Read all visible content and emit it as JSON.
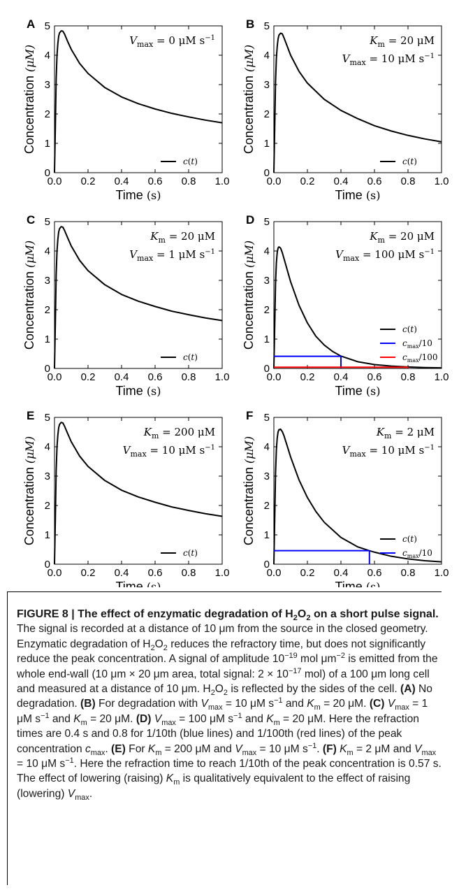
{
  "figure": {
    "caption": {
      "title_parts": [
        "FIGURE 8 | The effect of enzymatic degradation of H",
        "2",
        "O",
        "2",
        " on a short pulse signal."
      ],
      "body": [
        {
          "t": " The signal is recorded at a distance of 10 μm from the source in the closed geometry. Enzymatic degradation of H"
        },
        {
          "sub": "2"
        },
        {
          "t": "O"
        },
        {
          "sub": "2"
        },
        {
          "t": " reduces the refractory time, but does not significantly reduce the peak concentration. A signal of amplitude 10"
        },
        {
          "sup": "−19"
        },
        {
          "t": " mol μm"
        },
        {
          "sup": "−2"
        },
        {
          "t": " is emitted from the whole end-wall (10 μm × 20 μm area, total signal: 2 × 10"
        },
        {
          "sup": "−17"
        },
        {
          "t": " mol) of a 100 μm long cell and measured at a distance of 10 μm. H"
        },
        {
          "sub": "2"
        },
        {
          "t": "O"
        },
        {
          "sub": "2"
        },
        {
          "t": " is reflected by the sides of the cell. "
        },
        {
          "b": "(A)"
        },
        {
          "t": " No degradation. "
        },
        {
          "b": "(B)"
        },
        {
          "t": " For degradation with "
        },
        {
          "i": "V"
        },
        {
          "sub": "max"
        },
        {
          "t": " = 10 μM s"
        },
        {
          "sup": "−1"
        },
        {
          "t": " and "
        },
        {
          "i": "K"
        },
        {
          "sub": "m"
        },
        {
          "t": " = 20 μM. "
        },
        {
          "b": "(C)"
        },
        {
          "t": " "
        },
        {
          "i": "V"
        },
        {
          "sub": "max"
        },
        {
          "t": " = 1 μM s"
        },
        {
          "sup": "−1"
        },
        {
          "t": " and "
        },
        {
          "i": "K"
        },
        {
          "sub": "m"
        },
        {
          "t": " = 20 μM. "
        },
        {
          "b": "(D)"
        },
        {
          "t": " "
        },
        {
          "i": "V"
        },
        {
          "sub": "max"
        },
        {
          "t": " = 100 μM s"
        },
        {
          "sup": "−1"
        },
        {
          "t": " and "
        },
        {
          "i": "K"
        },
        {
          "sub": "m"
        },
        {
          "t": " = 20 μM. Here the refraction times are 0.4 s and 0.8 for 1/10th (blue lines) and 1/100th (red lines) of the peak concentration "
        },
        {
          "i": "c"
        },
        {
          "sub": "max"
        },
        {
          "t": ". "
        },
        {
          "b": "(E)"
        },
        {
          "t": " For "
        },
        {
          "i": "K"
        },
        {
          "sub": "m"
        },
        {
          "t": " = 200 μM and "
        },
        {
          "i": "V"
        },
        {
          "sub": "max"
        },
        {
          "t": " = 10 μM s"
        },
        {
          "sup": "−1"
        },
        {
          "t": ". "
        },
        {
          "b": "(F)"
        },
        {
          "t": " "
        },
        {
          "i": "K"
        },
        {
          "sub": "m"
        },
        {
          "t": " = 2 μM and "
        },
        {
          "i": "V"
        },
        {
          "sub": "max"
        },
        {
          "t": " = 10 μM s"
        },
        {
          "sup": "−1"
        },
        {
          "t": ". Here the refraction time to reach 1/10th of the peak concentration is 0.57 s. The effect of lowering (raising) "
        },
        {
          "i": "K"
        },
        {
          "sub": "m"
        },
        {
          "t": " is qualitatively equivalent to the effect of raising (lowering) "
        },
        {
          "i": "V"
        },
        {
          "sub": "max"
        },
        {
          "t": "."
        }
      ]
    }
  },
  "chart_data": [
    {
      "type": "line",
      "panel": "A",
      "xlabel": "Time",
      "xlabel_unit": "(s)",
      "ylabel": "Concentration",
      "ylabel_unit": "(μM)",
      "xlim": [
        0,
        1
      ],
      "ylim": [
        0,
        5
      ],
      "xticks": [
        "0.0",
        "0.2",
        "0.4",
        "0.6",
        "0.8",
        "1.0"
      ],
      "yticks": [
        "0",
        "1",
        "2",
        "3",
        "4",
        "5"
      ],
      "params": [
        {
          "sym": "V",
          "sub": "max",
          "val": "0 μM s",
          "sup": "−1"
        }
      ],
      "legend": {
        "placement": "lower-right",
        "entries": [
          {
            "label": "c(t)",
            "color": "#000000"
          }
        ]
      },
      "series": [
        {
          "name": "c(t)",
          "color": "#000000",
          "x": [
            0,
            0.005,
            0.01,
            0.015,
            0.02,
            0.025,
            0.03,
            0.04,
            0.05,
            0.06,
            0.08,
            0.1,
            0.15,
            0.2,
            0.3,
            0.4,
            0.5,
            0.6,
            0.7,
            0.8,
            0.9,
            1.0
          ],
          "y": [
            0,
            1.5,
            3.2,
            4.0,
            4.4,
            4.65,
            4.76,
            4.83,
            4.82,
            4.72,
            4.45,
            4.2,
            3.72,
            3.38,
            2.9,
            2.58,
            2.35,
            2.17,
            2.02,
            1.9,
            1.79,
            1.7
          ]
        }
      ],
      "hlines": []
    },
    {
      "type": "line",
      "panel": "B",
      "xlabel": "Time",
      "xlabel_unit": "(s)",
      "ylabel": "Concentration",
      "ylabel_unit": "(μM)",
      "xlim": [
        0,
        1
      ],
      "ylim": [
        0,
        5
      ],
      "xticks": [
        "0.0",
        "0.2",
        "0.4",
        "0.6",
        "0.8",
        "1.0"
      ],
      "yticks": [
        "0",
        "1",
        "2",
        "3",
        "4",
        "5"
      ],
      "params": [
        {
          "sym": "K",
          "sub": "m",
          "val": "20 μM",
          "sup": ""
        },
        {
          "sym": "V",
          "sub": "max",
          "val": "10 μM s",
          "sup": "−1"
        }
      ],
      "legend": {
        "placement": "lower-right",
        "entries": [
          {
            "label": "c(t)",
            "color": "#000000"
          }
        ]
      },
      "series": [
        {
          "name": "c(t)",
          "color": "#000000",
          "x": [
            0,
            0.005,
            0.01,
            0.015,
            0.02,
            0.025,
            0.03,
            0.04,
            0.05,
            0.06,
            0.08,
            0.1,
            0.15,
            0.2,
            0.3,
            0.4,
            0.5,
            0.6,
            0.7,
            0.8,
            0.9,
            1.0
          ],
          "y": [
            0,
            1.5,
            3.1,
            3.9,
            4.3,
            4.55,
            4.68,
            4.75,
            4.73,
            4.6,
            4.3,
            4.0,
            3.45,
            3.05,
            2.5,
            2.12,
            1.84,
            1.6,
            1.42,
            1.27,
            1.15,
            1.05
          ]
        }
      ],
      "hlines": []
    },
    {
      "type": "line",
      "panel": "C",
      "xlabel": "Time",
      "xlabel_unit": "(s)",
      "ylabel": "Concentration",
      "ylabel_unit": "(μM)",
      "xlim": [
        0,
        1
      ],
      "ylim": [
        0,
        5
      ],
      "xticks": [
        "0.0",
        "0.2",
        "0.4",
        "0.6",
        "0.8",
        "1.0"
      ],
      "yticks": [
        "0",
        "1",
        "2",
        "3",
        "4",
        "5"
      ],
      "params": [
        {
          "sym": "K",
          "sub": "m",
          "val": "20 μM",
          "sup": ""
        },
        {
          "sym": "V",
          "sub": "max",
          "val": "1 μM s",
          "sup": "−1"
        }
      ],
      "legend": {
        "placement": "lower-right",
        "entries": [
          {
            "label": "c(t)",
            "color": "#000000"
          }
        ]
      },
      "series": [
        {
          "name": "c(t)",
          "color": "#000000",
          "x": [
            0,
            0.005,
            0.01,
            0.015,
            0.02,
            0.025,
            0.03,
            0.04,
            0.05,
            0.06,
            0.08,
            0.1,
            0.15,
            0.2,
            0.3,
            0.4,
            0.5,
            0.6,
            0.7,
            0.8,
            0.9,
            1.0
          ],
          "y": [
            0,
            1.5,
            3.2,
            4.0,
            4.4,
            4.65,
            4.76,
            4.83,
            4.81,
            4.7,
            4.43,
            4.17,
            3.68,
            3.33,
            2.85,
            2.52,
            2.29,
            2.11,
            1.95,
            1.83,
            1.72,
            1.63
          ]
        }
      ],
      "hlines": []
    },
    {
      "type": "line",
      "panel": "D",
      "xlabel": "Time",
      "xlabel_unit": "(s)",
      "ylabel": "Concentration",
      "ylabel_unit": "(μM)",
      "xlim": [
        0,
        1
      ],
      "ylim": [
        0,
        5
      ],
      "xticks": [
        "0.0",
        "0.2",
        "0.4",
        "0.6",
        "0.8",
        "1.0"
      ],
      "yticks": [
        "0",
        "1",
        "2",
        "3",
        "4",
        "5"
      ],
      "params": [
        {
          "sym": "K",
          "sub": "m",
          "val": "20 μM",
          "sup": ""
        },
        {
          "sym": "V",
          "sub": "max",
          "val": "100 μM s",
          "sup": "−1"
        }
      ],
      "legend": {
        "placement": "lower-right",
        "entries": [
          {
            "label": "c(t)",
            "color": "#000000"
          },
          {
            "label": "c_max/10",
            "color": "#0000ff"
          },
          {
            "label": "c_max/100",
            "color": "#ff0000"
          }
        ]
      },
      "series": [
        {
          "name": "c(t)",
          "color": "#000000",
          "x": [
            0,
            0.005,
            0.01,
            0.015,
            0.02,
            0.025,
            0.03,
            0.04,
            0.05,
            0.06,
            0.08,
            0.1,
            0.15,
            0.2,
            0.25,
            0.3,
            0.35,
            0.4,
            0.5,
            0.6,
            0.7,
            0.8,
            0.9,
            1.0
          ],
          "y": [
            0,
            1.4,
            2.9,
            3.6,
            3.95,
            4.1,
            4.14,
            4.1,
            3.95,
            3.75,
            3.35,
            2.95,
            2.15,
            1.55,
            1.1,
            0.8,
            0.58,
            0.42,
            0.23,
            0.13,
            0.08,
            0.05,
            0.03,
            0.02
          ]
        }
      ],
      "hlines": [
        {
          "name": "c_max/10",
          "color": "#0000ff",
          "y": 0.414,
          "x_end": 0.4
        },
        {
          "name": "c_max/100",
          "color": "#ff0000",
          "y": 0.041,
          "x_end": 0.8
        }
      ]
    },
    {
      "type": "line",
      "panel": "E",
      "xlabel": "Time",
      "xlabel_unit": "(s)",
      "ylabel": "Concentration",
      "ylabel_unit": "(μM)",
      "xlim": [
        0,
        1
      ],
      "ylim": [
        0,
        5
      ],
      "xticks": [
        "0.0",
        "0.2",
        "0.4",
        "0.6",
        "0.8",
        "1.0"
      ],
      "yticks": [
        "0",
        "1",
        "2",
        "3",
        "4",
        "5"
      ],
      "params": [
        {
          "sym": "K",
          "sub": "m",
          "val": "200 μM",
          "sup": ""
        },
        {
          "sym": "V",
          "sub": "max",
          "val": "10 μM s",
          "sup": "−1"
        }
      ],
      "legend": {
        "placement": "lower-right",
        "entries": [
          {
            "label": "c(t)",
            "color": "#000000"
          }
        ]
      },
      "series": [
        {
          "name": "c(t)",
          "color": "#000000",
          "x": [
            0,
            0.005,
            0.01,
            0.015,
            0.02,
            0.025,
            0.03,
            0.04,
            0.05,
            0.06,
            0.08,
            0.1,
            0.15,
            0.2,
            0.3,
            0.4,
            0.5,
            0.6,
            0.7,
            0.8,
            0.9,
            1.0
          ],
          "y": [
            0,
            1.5,
            3.2,
            4.0,
            4.4,
            4.65,
            4.76,
            4.83,
            4.81,
            4.7,
            4.43,
            4.17,
            3.68,
            3.33,
            2.85,
            2.52,
            2.29,
            2.11,
            1.95,
            1.83,
            1.72,
            1.63
          ]
        }
      ],
      "hlines": []
    },
    {
      "type": "line",
      "panel": "F",
      "xlabel": "Time",
      "xlabel_unit": "(s)",
      "ylabel": "Concentration",
      "ylabel_unit": "(μM)",
      "xlim": [
        0,
        1
      ],
      "ylim": [
        0,
        5
      ],
      "xticks": [
        "0.0",
        "0.2",
        "0.4",
        "0.6",
        "0.8",
        "1.0"
      ],
      "yticks": [
        "0",
        "1",
        "2",
        "3",
        "4",
        "5"
      ],
      "params": [
        {
          "sym": "K",
          "sub": "m",
          "val": "2 μM",
          "sup": ""
        },
        {
          "sym": "V",
          "sub": "max",
          "val": "10 μM s",
          "sup": "−1"
        }
      ],
      "legend": {
        "placement": "lower-right",
        "entries": [
          {
            "label": "c(t)",
            "color": "#000000"
          },
          {
            "label": "c_max/10",
            "color": "#0000ff"
          }
        ]
      },
      "series": [
        {
          "name": "c(t)",
          "color": "#000000",
          "x": [
            0,
            0.005,
            0.01,
            0.015,
            0.02,
            0.025,
            0.03,
            0.04,
            0.05,
            0.06,
            0.08,
            0.1,
            0.15,
            0.2,
            0.25,
            0.3,
            0.4,
            0.5,
            0.57,
            0.6,
            0.7,
            0.8,
            0.9,
            1.0
          ],
          "y": [
            0,
            1.5,
            3.1,
            3.9,
            4.3,
            4.5,
            4.58,
            4.6,
            4.52,
            4.38,
            4.02,
            3.65,
            2.87,
            2.27,
            1.8,
            1.43,
            0.91,
            0.59,
            0.46,
            0.41,
            0.27,
            0.18,
            0.12,
            0.08
          ]
        }
      ],
      "hlines": [
        {
          "name": "c_max/10",
          "color": "#0000ff",
          "y": 0.46,
          "x_end": 0.57
        }
      ]
    }
  ]
}
